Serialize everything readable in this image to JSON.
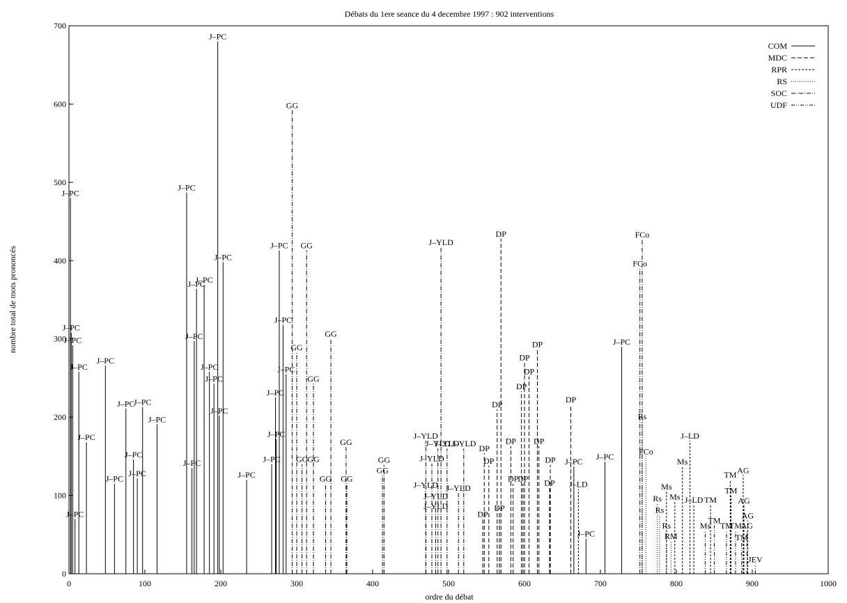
{
  "chart_data": {
    "type": "scatter",
    "title": "Débats du 1ere seance du 4 decembre 1997 : 902 interventions",
    "xlabel": "ordre du débat",
    "ylabel": "nombre total de mots prononcés",
    "xlim": [
      0,
      1000
    ],
    "ylim": [
      0,
      700
    ],
    "xticks": [
      0,
      100,
      200,
      300,
      400,
      500,
      600,
      700,
      800,
      900,
      1000
    ],
    "yticks": [
      0,
      100,
      200,
      300,
      400,
      500,
      600,
      700
    ],
    "grid": false,
    "legend": {
      "position": "top-right",
      "entries": [
        {
          "name": "COM",
          "dash": "solid"
        },
        {
          "name": "MDC",
          "dash": "dashed"
        },
        {
          "name": "RPR",
          "dash": "short-dashed"
        },
        {
          "name": "RS",
          "dash": "dotted"
        },
        {
          "name": "SOC",
          "dash": "dash-dot"
        },
        {
          "name": "UDF",
          "dash": "dash-dot-dot"
        }
      ]
    },
    "series": [
      {
        "name": "COM",
        "points": [
          {
            "x": 2,
            "y": 480,
            "label": "J–PC"
          },
          {
            "x": 3,
            "y": 308,
            "label": "J–PC"
          },
          {
            "x": 5,
            "y": 292,
            "label": "J–PC"
          },
          {
            "x": 13,
            "y": 258,
            "label": "J–PC"
          },
          {
            "x": 48,
            "y": 266,
            "label": "J–PC"
          },
          {
            "x": 75,
            "y": 211,
            "label": "J–PC"
          },
          {
            "x": 97,
            "y": 213,
            "label": "J–PC"
          },
          {
            "x": 116,
            "y": 191,
            "label": "J–PC"
          },
          {
            "x": 23,
            "y": 168,
            "label": "J–PC"
          },
          {
            "x": 155,
            "y": 487,
            "label": "J–PC"
          },
          {
            "x": 196,
            "y": 680,
            "label": "J–PC"
          },
          {
            "x": 203,
            "y": 398,
            "label": "J–PC"
          },
          {
            "x": 168,
            "y": 364,
            "label": "J–PC"
          },
          {
            "x": 178,
            "y": 369,
            "label": "J–PC"
          },
          {
            "x": 165,
            "y": 297,
            "label": "J–PC"
          },
          {
            "x": 185,
            "y": 258,
            "label": "J–PC"
          },
          {
            "x": 191,
            "y": 243,
            "label": "J–PC"
          },
          {
            "x": 198,
            "y": 202,
            "label": "J–PC"
          },
          {
            "x": 162,
            "y": 135,
            "label": "J–PC"
          },
          {
            "x": 234,
            "y": 120,
            "label": "J–PC"
          },
          {
            "x": 90,
            "y": 122,
            "label": "J–PC"
          },
          {
            "x": 85,
            "y": 146,
            "label": "J–PC"
          },
          {
            "x": 60,
            "y": 115,
            "label": "J–PC"
          },
          {
            "x": 8,
            "y": 70,
            "label": "J–PC"
          },
          {
            "x": 277,
            "y": 413,
            "label": "J–PC"
          },
          {
            "x": 282,
            "y": 318,
            "label": "J–PC"
          },
          {
            "x": 286,
            "y": 255,
            "label": "J–PC"
          },
          {
            "x": 272,
            "y": 225,
            "label": "J–PC"
          },
          {
            "x": 273,
            "y": 172,
            "label": "J–PC"
          },
          {
            "x": 267,
            "y": 140,
            "label": "J–PC"
          },
          {
            "x": 728,
            "y": 290,
            "label": "J–PC"
          },
          {
            "x": 665,
            "y": 137,
            "label": "J–PC"
          },
          {
            "x": 706,
            "y": 143,
            "label": "J–PC"
          },
          {
            "x": 681,
            "y": 45,
            "label": "J–PC"
          }
        ]
      },
      {
        "name": "MDC",
        "points": [
          {
            "x": 569,
            "y": 428,
            "label": "DP"
          },
          {
            "x": 564,
            "y": 210,
            "label": "DP"
          },
          {
            "x": 600,
            "y": 270,
            "label": "DP"
          },
          {
            "x": 606,
            "y": 252,
            "label": "DP"
          },
          {
            "x": 617,
            "y": 287,
            "label": "DP"
          },
          {
            "x": 596,
            "y": 233,
            "label": "DP"
          },
          {
            "x": 661,
            "y": 216,
            "label": "DP"
          },
          {
            "x": 619,
            "y": 163,
            "label": "DP"
          },
          {
            "x": 582,
            "y": 163,
            "label": "DP"
          },
          {
            "x": 634,
            "y": 139,
            "label": "DP"
          },
          {
            "x": 547,
            "y": 154,
            "label": "DP"
          },
          {
            "x": 553,
            "y": 138,
            "label": "DP"
          },
          {
            "x": 633,
            "y": 110,
            "label": "DP"
          },
          {
            "x": 585,
            "y": 115,
            "label": "DP"
          },
          {
            "x": 598,
            "y": 115,
            "label": "DP"
          },
          {
            "x": 567,
            "y": 78,
            "label": "DP"
          },
          {
            "x": 545,
            "y": 70,
            "label": "DP"
          }
        ]
      },
      {
        "name": "RPR",
        "points": [
          {
            "x": 818,
            "y": 170,
            "label": "J–LD"
          },
          {
            "x": 808,
            "y": 137,
            "label": "Ms"
          },
          {
            "x": 787,
            "y": 105,
            "label": "Ms"
          },
          {
            "x": 798,
            "y": 92,
            "label": "Ms"
          },
          {
            "x": 671,
            "y": 108,
            "label": "J–LD"
          },
          {
            "x": 823,
            "y": 88,
            "label": "J–LD"
          },
          {
            "x": 845,
            "y": 88,
            "label": "TM"
          },
          {
            "x": 871,
            "y": 120,
            "label": "TM"
          },
          {
            "x": 872,
            "y": 100,
            "label": "TM"
          },
          {
            "x": 888,
            "y": 126,
            "label": "AG"
          },
          {
            "x": 889,
            "y": 87,
            "label": "AG"
          },
          {
            "x": 894,
            "y": 68,
            "label": "AG"
          }
        ]
      },
      {
        "name": "RS",
        "points": [
          {
            "x": 755,
            "y": 195,
            "label": "Rs"
          },
          {
            "x": 760,
            "y": 150,
            "label": "FCo"
          },
          {
            "x": 775,
            "y": 90,
            "label": "Rs"
          },
          {
            "x": 778,
            "y": 75,
            "label": "Rs"
          },
          {
            "x": 787,
            "y": 55,
            "label": "Rs"
          },
          {
            "x": 793,
            "y": 42,
            "label": "RM"
          }
        ]
      },
      {
        "name": "SOC",
        "points": [
          {
            "x": 294,
            "y": 592,
            "label": "GG"
          },
          {
            "x": 313,
            "y": 413,
            "label": "GG"
          },
          {
            "x": 345,
            "y": 300,
            "label": "GG"
          },
          {
            "x": 300,
            "y": 283,
            "label": "GG"
          },
          {
            "x": 322,
            "y": 243,
            "label": "GG"
          },
          {
            "x": 365,
            "y": 162,
            "label": "GG"
          },
          {
            "x": 755,
            "y": 427,
            "label": "FCo"
          },
          {
            "x": 752,
            "y": 390,
            "label": "FCo"
          },
          {
            "x": 490,
            "y": 417,
            "label": "J–YLD"
          },
          {
            "x": 470,
            "y": 170,
            "label": "J–YLD"
          },
          {
            "x": 478,
            "y": 141,
            "label": "J–YLD"
          },
          {
            "x": 486,
            "y": 160,
            "label": "J–YLD"
          },
          {
            "x": 498,
            "y": 160,
            "label": "J–YLD"
          },
          {
            "x": 520,
            "y": 160,
            "label": "J–YLD"
          },
          {
            "x": 470,
            "y": 107,
            "label": "J–YLD"
          },
          {
            "x": 513,
            "y": 103,
            "label": "J–YLD"
          },
          {
            "x": 483,
            "y": 93,
            "label": "J–YLD"
          },
          {
            "x": 483,
            "y": 80,
            "label": "J–YLD"
          },
          {
            "x": 413,
            "y": 126,
            "label": "GG"
          },
          {
            "x": 415,
            "y": 139,
            "label": "GG"
          },
          {
            "x": 366,
            "y": 115,
            "label": "GG"
          },
          {
            "x": 338,
            "y": 115,
            "label": "GG"
          },
          {
            "x": 322,
            "y": 140,
            "label": "GG"
          },
          {
            "x": 307,
            "y": 140,
            "label": "GG"
          }
        ]
      },
      {
        "name": "UDF",
        "points": [
          {
            "x": 850,
            "y": 62,
            "label": "TM"
          },
          {
            "x": 838,
            "y": 55,
            "label": "Ms"
          },
          {
            "x": 866,
            "y": 55,
            "label": "TM"
          },
          {
            "x": 878,
            "y": 55,
            "label": "TM"
          },
          {
            "x": 893,
            "y": 55,
            "label": "AG"
          },
          {
            "x": 904,
            "y": 12,
            "label": "JEV"
          },
          {
            "x": 886,
            "y": 40,
            "label": "TM"
          }
        ]
      }
    ]
  }
}
